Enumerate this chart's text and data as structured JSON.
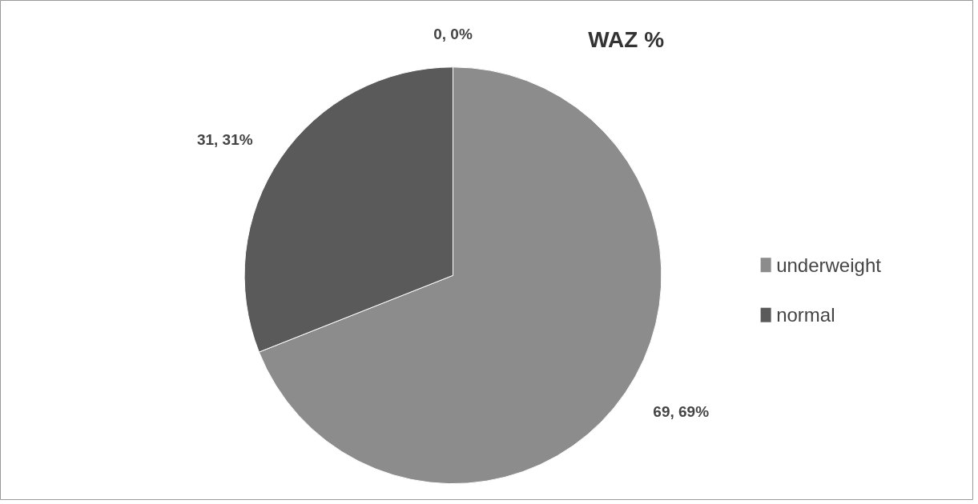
{
  "chart_data": {
    "type": "pie",
    "title": "WAZ %",
    "categories": [
      "underweight",
      "normal",
      null
    ],
    "values": [
      69,
      31,
      0
    ],
    "colors": [
      "#8c8c8c",
      "#5a5a5a",
      "#7a7a7a"
    ],
    "value_labels": [
      "69, 69%",
      "31, 31%",
      "0, 0%"
    ],
    "legend": "right"
  }
}
